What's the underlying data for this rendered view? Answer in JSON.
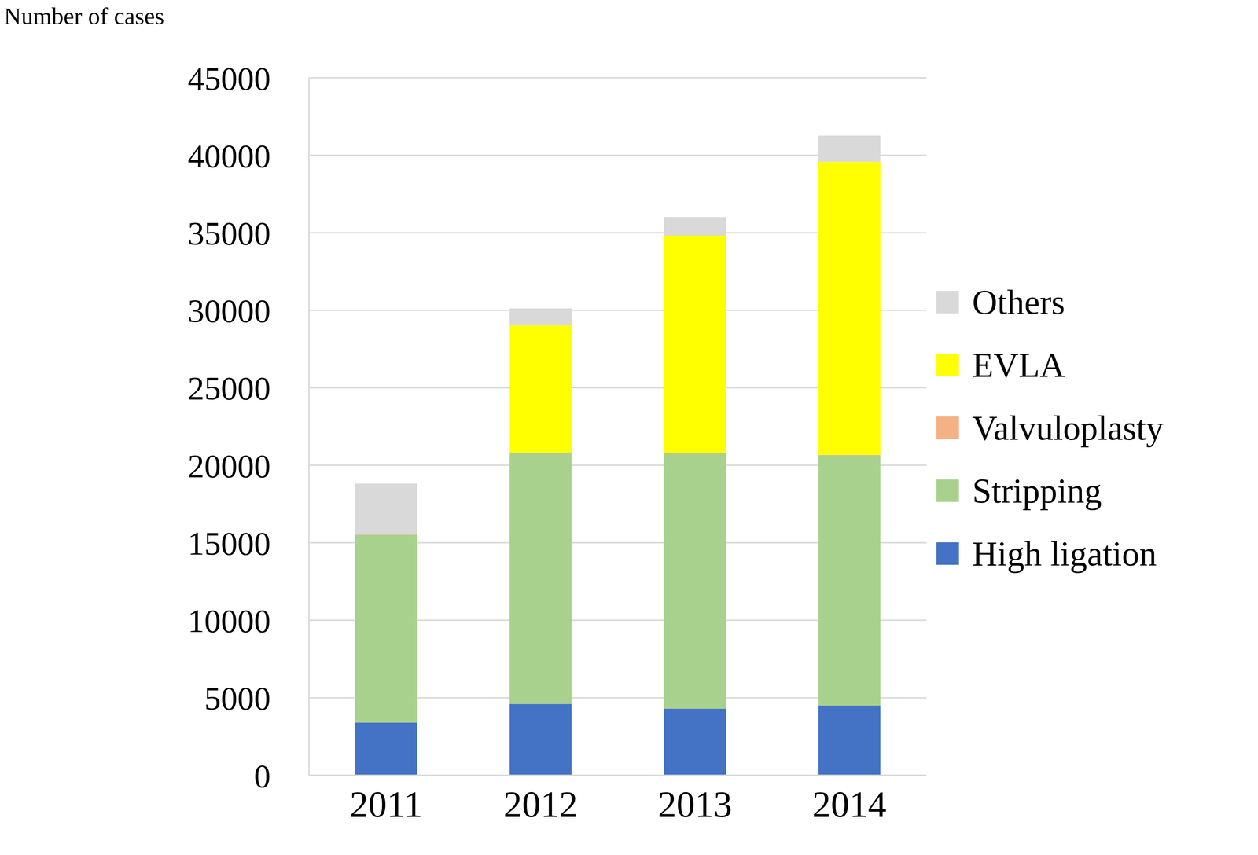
{
  "chart_data": {
    "type": "bar",
    "stacked": true,
    "y_label": "Number of cases",
    "categories": [
      "2011",
      "2012",
      "2013",
      "2014"
    ],
    "series": [
      {
        "name": "High ligation",
        "color": "#4472c4",
        "values": [
          3400,
          4600,
          4300,
          4500
        ]
      },
      {
        "name": "Stripping",
        "color": "#a9d18e",
        "values": [
          12100,
          16200,
          16450,
          16150
        ]
      },
      {
        "name": "Valvuloplasty",
        "color": "#f4b183",
        "values": [
          20,
          20,
          20,
          20
        ]
      },
      {
        "name": "EVLA",
        "color": "#ffff00",
        "values": [
          0,
          8200,
          14050,
          18900
        ]
      },
      {
        "name": "Others",
        "color": "#d9d9d9",
        "values": [
          3300,
          1100,
          1200,
          1700
        ]
      }
    ],
    "ylim": [
      0,
      45000
    ],
    "yticks": [
      0,
      5000,
      10000,
      15000,
      20000,
      25000,
      30000,
      35000,
      40000,
      45000
    ],
    "grid": true,
    "legend": "right"
  }
}
